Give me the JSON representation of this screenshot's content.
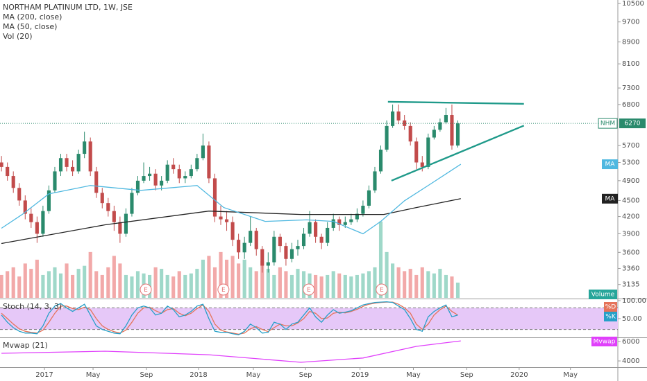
{
  "chart_data": [
    {
      "type": "candlestick",
      "title": "NORTHAM PLATINUM LTD, 1W, JSE",
      "indicators": [
        "MA (200, close)",
        "MA (50, close)",
        "Vol (20)"
      ],
      "symbol": "NHM",
      "last_price": 6270,
      "log_scale": true,
      "grid": false,
      "up_color": "#2a8a6c",
      "down_color": "#c24b4b",
      "volume_up_color": "#9fd8c9",
      "volume_down_color": "#f2a9a9",
      "x": [
        0,
        2,
        4,
        6,
        8,
        10,
        12,
        14,
        16,
        18,
        20,
        22,
        24,
        26,
        28,
        30,
        32,
        34,
        36,
        38,
        40,
        42,
        44,
        46,
        48,
        50,
        52,
        54,
        56,
        58,
        60,
        62,
        64,
        66,
        68,
        70,
        72,
        74,
        76,
        78,
        80,
        82,
        84,
        86,
        88,
        90,
        92,
        94,
        96,
        98,
        100,
        102,
        104,
        106,
        108,
        110,
        112,
        114,
        116,
        118,
        120,
        122,
        124,
        126,
        128,
        130,
        132,
        134,
        136,
        138,
        140,
        142,
        144,
        146,
        148,
        150,
        152,
        154
      ],
      "open": [
        5300,
        5200,
        5000,
        4750,
        4500,
        4250,
        4100,
        3900,
        4300,
        4700,
        5100,
        5400,
        5200,
        5100,
        5500,
        5800,
        5100,
        4650,
        4450,
        4300,
        4100,
        3900,
        4250,
        4650,
        4900,
        5000,
        5050,
        4800,
        4900,
        5250,
        5150,
        4950,
        5000,
        5150,
        5400,
        5700,
        4950,
        4200,
        4150,
        4100,
        3800,
        3600,
        3750,
        3950,
        3650,
        3400,
        3450,
        3850,
        3700,
        3500,
        3650,
        3700,
        3900,
        4100,
        3850,
        3750,
        4000,
        4150,
        4050,
        4100,
        4150,
        4250,
        4400,
        4700,
        5100,
        5600,
        6200,
        6600,
        6350,
        6200,
        5800,
        5300,
        5200,
        5900,
        6100,
        6300,
        6500,
        5700
      ],
      "high": [
        5450,
        5300,
        5100,
        4850,
        4600,
        4350,
        4200,
        4400,
        4800,
        5200,
        5500,
        5500,
        5350,
        5600,
        6050,
        5900,
        5200,
        4750,
        4550,
        4400,
        4200,
        4350,
        4750,
        5000,
        5300,
        5200,
        5150,
        5000,
        5350,
        5400,
        5250,
        5100,
        5250,
        5500,
        6000,
        5800,
        5050,
        4400,
        4300,
        4200,
        3900,
        3850,
        4200,
        4000,
        3700,
        3600,
        3950,
        3900,
        3750,
        3750,
        3800,
        4000,
        4300,
        4150,
        3900,
        4100,
        4250,
        4200,
        4200,
        4250,
        4350,
        4500,
        4800,
        5200,
        5700,
        6350,
        6800,
        6800,
        6500,
        6300,
        5900,
        5450,
        6000,
        6200,
        6400,
        6700,
        6800,
        6350
      ],
      "low": [
        5100,
        4900,
        4650,
        4400,
        4150,
        4000,
        3750,
        3850,
        4250,
        4650,
        5000,
        5100,
        5000,
        5050,
        5400,
        5000,
        4550,
        4350,
        4200,
        3950,
        3750,
        3850,
        4200,
        4600,
        4850,
        4900,
        4700,
        4700,
        4850,
        5050,
        4850,
        4850,
        4950,
        5100,
        5350,
        4850,
        4100,
        4050,
        3950,
        3700,
        3500,
        3500,
        3700,
        3550,
        3300,
        3300,
        3400,
        3600,
        3400,
        3450,
        3550,
        3650,
        3850,
        3750,
        3650,
        3700,
        3950,
        3950,
        4000,
        4050,
        4100,
        4200,
        4350,
        4650,
        5050,
        5550,
        6150,
        6250,
        6100,
        5700,
        5150,
        5100,
        5150,
        5850,
        6050,
        6250,
        5600,
        5650
      ],
      "close": [
        5200,
        5000,
        4750,
        4500,
        4250,
        4100,
        3900,
        4300,
        4700,
        5100,
        5400,
        5200,
        5100,
        5500,
        5800,
        5100,
        4650,
        4450,
        4300,
        4100,
        3900,
        4250,
        4650,
        4900,
        5000,
        5050,
        4800,
        4900,
        5250,
        5150,
        4950,
        5000,
        5150,
        5400,
        5700,
        4950,
        4200,
        4150,
        4100,
        3800,
        3600,
        3750,
        3950,
        3650,
        3400,
        3450,
        3850,
        3700,
        3500,
        3650,
        3700,
        3900,
        4100,
        3850,
        3750,
        4000,
        4150,
        4050,
        4100,
        4150,
        4250,
        4400,
        4700,
        5100,
        5600,
        6200,
        6600,
        6350,
        6200,
        5800,
        5300,
        5200,
        5900,
        6100,
        6300,
        6500,
        5700,
        6270
      ],
      "volume": [
        30,
        35,
        40,
        28,
        45,
        38,
        50,
        30,
        35,
        40,
        32,
        45,
        30,
        38,
        42,
        60,
        35,
        30,
        40,
        55,
        45,
        30,
        28,
        35,
        32,
        30,
        40,
        38,
        30,
        28,
        35,
        30,
        32,
        38,
        50,
        55,
        40,
        60,
        50,
        55,
        45,
        50,
        40,
        35,
        48,
        38,
        30,
        40,
        35,
        30,
        38,
        35,
        32,
        30,
        28,
        30,
        35,
        32,
        30,
        28,
        30,
        32,
        35,
        40,
        100,
        60,
        45,
        40,
        35,
        38,
        30,
        40,
        35,
        32,
        38,
        30,
        28,
        20
      ],
      "volume_ylim": [
        0,
        390
      ],
      "volume_label": "Volume",
      "volume_label_color": "#26a69a",
      "series": [
        {
          "name": "MA",
          "color": "#222222",
          "x": [
            0,
            35,
            70,
            101,
            129,
            140,
            155
          ],
          "values": [
            3740,
            4053,
            4300,
            4237,
            4237,
            4365,
            4535
          ]
        },
        {
          "name": "MA",
          "color": "#4fb8e0",
          "x": [
            0,
            7,
            16,
            30,
            47,
            66,
            75,
            89,
            103,
            112,
            122,
            128,
            136,
            145,
            155
          ],
          "values": [
            3993,
            4237,
            4630,
            4800,
            4700,
            4800,
            4365,
            4113,
            4140,
            4113,
            3899,
            4113,
            4495,
            4840,
            5260
          ]
        }
      ],
      "trendlines": {
        "color": "#1f9a8a",
        "lines": [
          {
            "x": [
              130.4,
              176.3
            ],
            "values": [
              6880,
              6820
            ]
          },
          {
            "x": [
              131.6,
              176.3
            ],
            "values": [
              4900,
              6210
            ]
          }
        ]
      },
      "events": [
        {
          "x": 48.7,
          "label": "E"
        },
        {
          "x": 74.9,
          "label": "E"
        },
        {
          "x": 103.7,
          "label": "E"
        },
        {
          "x": 128.3,
          "label": "E"
        }
      ],
      "xlim": [
        -0.5,
        208
      ],
      "xticks": [
        {
          "value": 14.5,
          "label": "2017"
        },
        {
          "value": 30.9,
          "label": "May"
        },
        {
          "value": 48.9,
          "label": "Sep"
        },
        {
          "value": 66.5,
          "label": "2018"
        },
        {
          "value": 85,
          "label": "May"
        },
        {
          "value": 102.6,
          "label": "Sep"
        },
        {
          "value": 121,
          "label": "2019"
        },
        {
          "value": 139,
          "label": "May"
        },
        {
          "value": 157,
          "label": "Sep"
        },
        {
          "value": 174.7,
          "label": "2020"
        },
        {
          "value": 192,
          "label": "May"
        }
      ],
      "ylim": [
        2960,
        10660
      ],
      "yticks": [
        10500,
        9700,
        8900,
        8100,
        7300,
        6800,
        5700,
        5300,
        4900,
        4500,
        4200,
        3900,
        3600,
        3360,
        3135
      ]
    },
    {
      "type": "line",
      "title": "Stoch (14, 3, 3)",
      "ylim": [
        0,
        100
      ],
      "band": [
        20,
        80
      ],
      "band_color": "#e6c8f8",
      "yticks": [
        {
          "value": 100,
          "label": "100.00"
        },
        {
          "value": 50,
          "label": "50.00"
        }
      ],
      "series": [
        {
          "name": "%D",
          "color": "#e5735a",
          "values": [
            65,
            50,
            35,
            22,
            15,
            12,
            10,
            18,
            40,
            65,
            85,
            85,
            78,
            75,
            82,
            75,
            50,
            30,
            20,
            14,
            10,
            18,
            40,
            65,
            80,
            82,
            72,
            65,
            75,
            78,
            65,
            58,
            65,
            78,
            88,
            70,
            35,
            18,
            13,
            10,
            7,
            10,
            22,
            28,
            20,
            14,
            25,
            35,
            30,
            30,
            38,
            50,
            70,
            65,
            50,
            52,
            65,
            68,
            66,
            70,
            76,
            84,
            90,
            93,
            95,
            96,
            96,
            90,
            80,
            65,
            35,
            20,
            35,
            60,
            75,
            85,
            70,
            60
          ]
        },
        {
          "name": "%K",
          "color": "#26a0c8",
          "values": [
            60,
            40,
            25,
            15,
            10,
            10,
            8,
            30,
            65,
            85,
            92,
            80,
            70,
            80,
            90,
            60,
            30,
            20,
            15,
            10,
            8,
            30,
            60,
            80,
            85,
            80,
            60,
            65,
            85,
            75,
            55,
            60,
            70,
            85,
            90,
            50,
            15,
            12,
            12,
            8,
            5,
            15,
            35,
            25,
            10,
            12,
            40,
            35,
            20,
            35,
            40,
            60,
            80,
            55,
            40,
            60,
            75,
            65,
            68,
            72,
            80,
            88,
            92,
            95,
            96,
            97,
            95,
            85,
            75,
            50,
            20,
            15,
            55,
            70,
            80,
            88,
            55,
            60
          ]
        }
      ]
    },
    {
      "type": "line",
      "title": "Mvwap (21)",
      "ylim": [
        3360,
        6360
      ],
      "yticks": [
        6000,
        4000
      ],
      "series": [
        {
          "name": "Mvwap",
          "color": "#e040fb",
          "x": [
            0,
            35,
            70,
            101,
            122,
            140,
            155
          ],
          "values": [
            4790,
            5000,
            4640,
            3860,
            4300,
            5500,
            6070
          ]
        }
      ]
    }
  ]
}
